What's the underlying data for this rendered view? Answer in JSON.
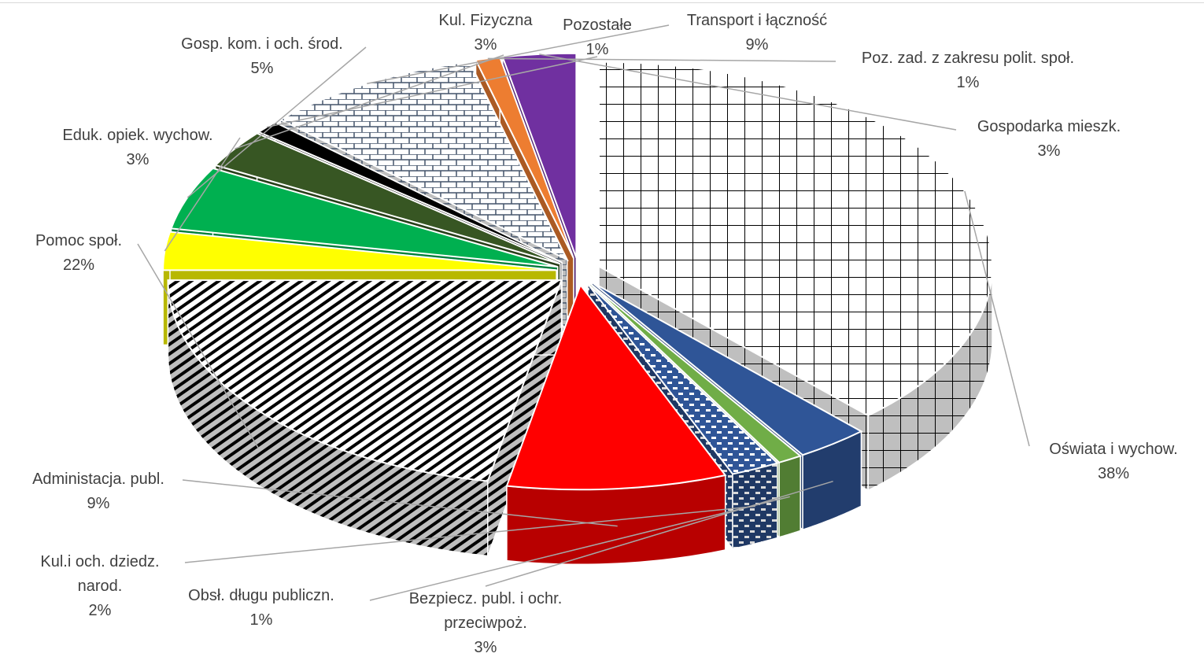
{
  "chart_data": {
    "type": "pie",
    "title": "",
    "exploded": true,
    "three_d": true,
    "slices": [
      {
        "name": "Oświata i wychow.",
        "value": 38,
        "label": "38%",
        "color": "#ffffff",
        "pattern": "grid"
      },
      {
        "name": "Bezpiecz. publ. i ochr. przeciwpoż.",
        "value": 3,
        "label": "3%",
        "color": "#2f5597"
      },
      {
        "name": "Obsł. długu publiczn.",
        "value": 1,
        "label": "1%",
        "color": "#70ad47"
      },
      {
        "name": "Kul.i och. dziedz. narod.",
        "value": 2,
        "label": "2%",
        "color": "#2f5597",
        "pattern": "weave"
      },
      {
        "name": "Administacja. publ.",
        "value": 9,
        "label": "9%",
        "color": "#ff0000"
      },
      {
        "name": "Pomoc społ.",
        "value": 22,
        "label": "22%",
        "color": "#ffffff",
        "pattern": "diagonal"
      },
      {
        "name": "Eduk. opiek. wychow.",
        "value": 3,
        "label": "3%",
        "color": "#ffff00"
      },
      {
        "name": "Gosp. kom. i och. środ.",
        "value": 5,
        "label": "5%",
        "color": "#00b050"
      },
      {
        "name": "Kul. Fizyczna",
        "value": 3,
        "label": "3%",
        "color": "#375623"
      },
      {
        "name": "Pozostałe",
        "value": 1,
        "label": "1%",
        "color": "#000000"
      },
      {
        "name": "Transport i łączność",
        "value": 9,
        "label": "9%",
        "color": "#ffffff",
        "pattern": "brick"
      },
      {
        "name": "Poz. zad. z zakresu polit. społ.",
        "value": 1,
        "label": "1%",
        "color": "#ed7d31"
      },
      {
        "name": "Gospodarka mieszk.",
        "value": 3,
        "label": "3%",
        "color": "#7030a0"
      }
    ],
    "labels": [
      {
        "lines": [
          "Oświata i wychow.",
          "38%"
        ]
      },
      {
        "lines": [
          "Bezpiecz. publ. i ochr.",
          "przeciwpoż.",
          "3%"
        ]
      },
      {
        "lines": [
          "Obsł. długu publiczn.",
          "1%"
        ]
      },
      {
        "lines": [
          "Kul.i och. dziedz.",
          "narod.",
          "2%"
        ]
      },
      {
        "lines": [
          "Administacja. publ.",
          "9%"
        ]
      },
      {
        "lines": [
          "Pomoc społ.",
          "22%"
        ]
      },
      {
        "lines": [
          "Eduk. opiek. wychow.",
          "3%"
        ]
      },
      {
        "lines": [
          "Gosp. kom. i och. środ.",
          "5%"
        ]
      },
      {
        "lines": [
          "Kul. Fizyczna",
          "3%"
        ]
      },
      {
        "lines": [
          "Pozostałe",
          "1%"
        ]
      },
      {
        "lines": [
          "Transport i łączność",
          "9%"
        ]
      },
      {
        "lines": [
          "Poz. zad. z zakresu polit. społ.",
          "1%"
        ]
      },
      {
        "lines": [
          "Gospodarka mieszk.",
          "3%"
        ]
      }
    ],
    "legend": "none"
  }
}
